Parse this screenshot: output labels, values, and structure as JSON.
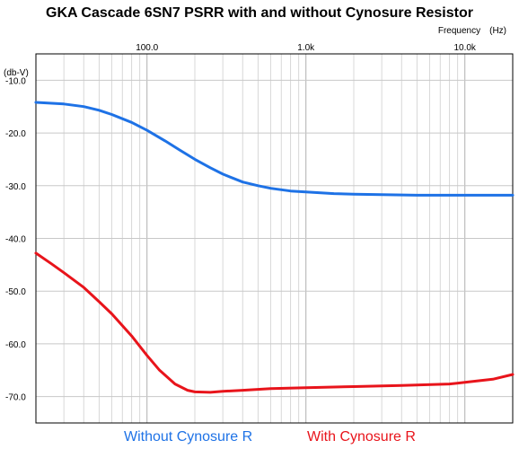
{
  "chart_data": {
    "type": "line",
    "title": "GKA Cascade 6SN7 PSRR with and without Cynosure Resistor",
    "xlabel": "Frequency",
    "xunit": "(Hz)",
    "ylabel": "(db-V)",
    "xscale": "log",
    "xlim": [
      20,
      20000
    ],
    "ylim": [
      -75,
      -5
    ],
    "x_ticks": [
      100,
      1000,
      10000
    ],
    "x_tick_labels": [
      "100.0",
      "1.0k",
      "10.0k"
    ],
    "y_ticks": [
      -10,
      -20,
      -30,
      -40,
      -50,
      -60,
      -70
    ],
    "y_tick_labels": [
      "-10.0",
      "-20.0",
      "-30.0",
      "-40.0",
      "-50.0",
      "-60.0",
      "-70.0"
    ],
    "grid": true,
    "legend_position": "bottom",
    "series": [
      {
        "name": "Without Cynosure R",
        "color": "#1e72e6",
        "x": [
          20,
          30,
          40,
          50,
          60,
          80,
          100,
          130,
          160,
          200,
          250,
          300,
          400,
          500,
          600,
          800,
          1000,
          1500,
          2000,
          3000,
          5000,
          8000,
          10000,
          15000,
          20000
        ],
        "y": [
          -14.2,
          -14.5,
          -15.0,
          -15.7,
          -16.5,
          -18.0,
          -19.5,
          -21.5,
          -23.2,
          -25.0,
          -26.6,
          -27.8,
          -29.3,
          -30.0,
          -30.5,
          -31.0,
          -31.2,
          -31.5,
          -31.6,
          -31.7,
          -31.8,
          -31.8,
          -31.8,
          -31.8,
          -31.8
        ]
      },
      {
        "name": "With Cynosure R",
        "color": "#e8141b",
        "x": [
          20,
          25,
          30,
          40,
          50,
          60,
          80,
          100,
          120,
          150,
          180,
          200,
          250,
          300,
          400,
          600,
          1000,
          2000,
          4000,
          8000,
          10000,
          15000,
          20000
        ],
        "y": [
          -42.8,
          -44.8,
          -46.5,
          -49.3,
          -52.0,
          -54.3,
          -58.5,
          -62.2,
          -65.0,
          -67.6,
          -68.8,
          -69.1,
          -69.2,
          -69.0,
          -68.8,
          -68.5,
          -68.3,
          -68.1,
          -67.9,
          -67.6,
          -67.3,
          -66.7,
          -65.8
        ]
      }
    ]
  }
}
